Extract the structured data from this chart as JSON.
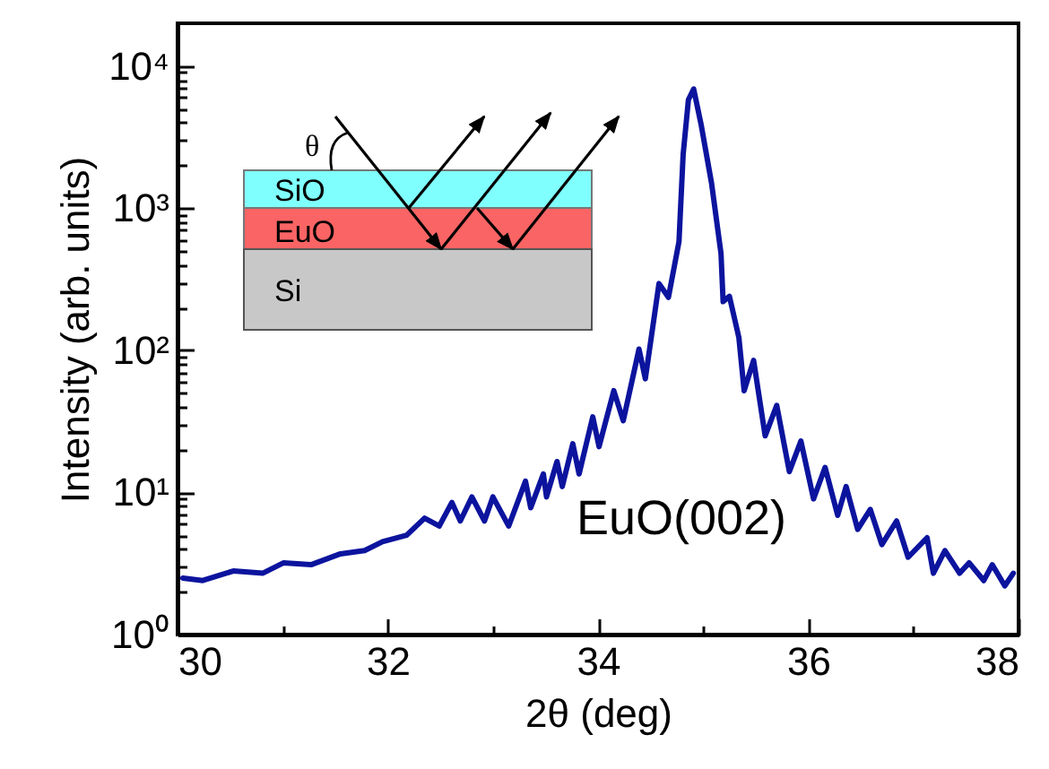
{
  "chart_data": {
    "type": "line",
    "xlabel": "2θ (deg)",
    "ylabel": "Intensity (arb. units)",
    "log": "y",
    "grid": false,
    "marker": "none",
    "line_style": "solid",
    "annotations": [
      "EuO(002)",
      "SiO",
      "EuO",
      "Si",
      "θ"
    ],
    "xlim": [
      30,
      38
    ],
    "xticks": [
      30,
      {
        "value": 31,
        "label": null
      },
      32,
      {
        "value": 33,
        "label": null
      },
      34,
      {
        "value": 35,
        "label": null
      },
      36,
      {
        "value": 37,
        "label": null
      },
      38
    ],
    "ylim": [
      1,
      20000
    ],
    "yticks": [
      {
        "value": 1,
        "label": "10⁰"
      },
      {
        "value": 2,
        "label": null
      },
      {
        "value": 3,
        "label": null
      },
      {
        "value": 4,
        "label": null
      },
      {
        "value": 5,
        "label": null
      },
      {
        "value": 6,
        "label": null
      },
      {
        "value": 7,
        "label": null
      },
      {
        "value": 8,
        "label": null
      },
      {
        "value": 9,
        "label": null
      },
      {
        "value": 10,
        "label": "10¹"
      },
      {
        "value": 20,
        "label": null
      },
      {
        "value": 30,
        "label": null
      },
      {
        "value": 40,
        "label": null
      },
      {
        "value": 50,
        "label": null
      },
      {
        "value": 60,
        "label": null
      },
      {
        "value": 70,
        "label": null
      },
      {
        "value": 80,
        "label": null
      },
      {
        "value": 90,
        "label": null
      },
      {
        "value": 100,
        "label": "10²"
      },
      {
        "value": 200,
        "label": null
      },
      {
        "value": 300,
        "label": null
      },
      {
        "value": 400,
        "label": null
      },
      {
        "value": 500,
        "label": null
      },
      {
        "value": 600,
        "label": null
      },
      {
        "value": 700,
        "label": null
      },
      {
        "value": 800,
        "label": null
      },
      {
        "value": 900,
        "label": null
      },
      {
        "value": 1000,
        "label": "10³"
      },
      {
        "value": 2000,
        "label": null
      },
      {
        "value": 3000,
        "label": null
      },
      {
        "value": 4000,
        "label": null
      },
      {
        "value": 5000,
        "label": null
      },
      {
        "value": 6000,
        "label": null
      },
      {
        "value": 7000,
        "label": null
      },
      {
        "value": 8000,
        "label": null
      },
      {
        "value": 9000,
        "label": null
      },
      {
        "value": 10000,
        "label": "10⁴"
      }
    ],
    "series": [
      {
        "color": "#0c149e",
        "x": [
          30.05,
          30.24,
          30.53,
          30.81,
          31.01,
          31.27,
          31.55,
          31.78,
          31.95,
          32.18,
          32.35,
          32.49,
          32.61,
          32.69,
          32.8,
          32.92,
          33.0,
          33.15,
          33.31,
          33.36,
          33.48,
          33.51,
          33.61,
          33.66,
          33.76,
          33.82,
          33.95,
          34.01,
          34.15,
          34.24,
          34.39,
          34.45,
          34.58,
          34.67,
          34.77,
          34.81,
          34.86,
          34.91,
          34.98,
          35.08,
          35.17,
          35.19,
          35.25,
          35.34,
          35.39,
          35.48,
          35.59,
          35.7,
          35.82,
          35.93,
          36.05,
          36.16,
          36.28,
          36.36,
          36.47,
          36.59,
          36.7,
          36.84,
          36.95,
          37.13,
          37.19,
          37.3,
          37.44,
          37.53,
          37.67,
          37.75,
          37.87,
          37.95
        ],
        "values": [
          2.5,
          2.4,
          2.8,
          2.7,
          3.2,
          3.1,
          3.7,
          3.9,
          4.5,
          5.0,
          6.6,
          5.8,
          8.5,
          6.3,
          9.3,
          6.3,
          9.3,
          5.8,
          12,
          7.8,
          13.5,
          9.3,
          16.5,
          11,
          22,
          13.5,
          34,
          21,
          52,
          32,
          102,
          63,
          295,
          236,
          580,
          2400,
          5800,
          6900,
          3900,
          1500,
          480,
          220,
          240,
          123,
          52,
          85,
          25,
          41,
          14,
          23,
          9,
          15,
          6.9,
          11,
          5.5,
          7.6,
          4.3,
          6.3,
          3.5,
          4.8,
          2.7,
          3.9,
          2.7,
          3.2,
          2.4,
          3.1,
          2.2,
          2.7
        ]
      }
    ]
  }
}
